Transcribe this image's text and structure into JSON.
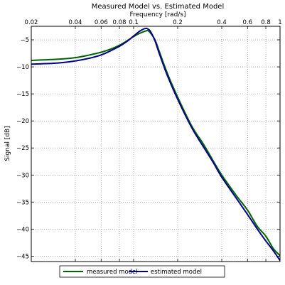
{
  "chart_data": {
    "type": "line",
    "title": "Measured Model vs. Estimated Model",
    "xlabel": "Frequency [rad/s]",
    "ylabel": "Signal [dB]",
    "xscale": "log",
    "xaxis_position": "top",
    "xlim": [
      0.02,
      1.0
    ],
    "ylim": [
      -46,
      -2.5
    ],
    "xticks": [
      0.02,
      0.04,
      0.06,
      0.08,
      0.1,
      0.2,
      0.4,
      0.6,
      0.8,
      1
    ],
    "xtick_labels": [
      "0.02",
      "0.04",
      "0.06",
      "0.08",
      "0.1",
      "0.2",
      "0.4",
      "0.6",
      "0.8",
      "1"
    ],
    "yticks": [
      -5,
      -10,
      -15,
      -20,
      -25,
      -30,
      -35,
      -40,
      -45
    ],
    "ytick_labels": [
      "−5",
      "−10",
      "−15",
      "−20",
      "−25",
      "−30",
      "−35",
      "−40",
      "−45"
    ],
    "grid": true,
    "grid_style": "dotted",
    "legend_position": "bottom-center",
    "series": [
      {
        "name": "measured model",
        "color": "#006400",
        "x": [
          0.02,
          0.03,
          0.04,
          0.05,
          0.06,
          0.07,
          0.08,
          0.09,
          0.1,
          0.11,
          0.12,
          0.125,
          0.13,
          0.14,
          0.15,
          0.17,
          0.2,
          0.25,
          0.3,
          0.35,
          0.4,
          0.5,
          0.6,
          0.7,
          0.8,
          0.9,
          1.0
        ],
        "y": [
          -8.8,
          -8.6,
          -8.3,
          -7.8,
          -7.3,
          -6.7,
          -6.0,
          -5.2,
          -4.4,
          -3.8,
          -3.4,
          -3.3,
          -3.7,
          -5.0,
          -7.2,
          -11.2,
          -15.6,
          -21.0,
          -24.3,
          -27.4,
          -30.0,
          -33.7,
          -36.5,
          -39.5,
          -41.3,
          -43.6,
          -44.9
        ]
      },
      {
        "name": "estimated model",
        "color": "#00008b",
        "x": [
          0.02,
          0.03,
          0.04,
          0.05,
          0.06,
          0.07,
          0.08,
          0.09,
          0.1,
          0.11,
          0.12,
          0.125,
          0.13,
          0.14,
          0.15,
          0.17,
          0.2,
          0.25,
          0.3,
          0.35,
          0.4,
          0.5,
          0.6,
          0.7,
          0.8,
          0.9,
          1.0
        ],
        "y": [
          -9.5,
          -9.3,
          -8.9,
          -8.4,
          -7.8,
          -7.0,
          -6.2,
          -5.3,
          -4.3,
          -3.4,
          -2.9,
          -3.0,
          -3.4,
          -5.2,
          -7.6,
          -11.6,
          -16.0,
          -21.3,
          -24.8,
          -27.7,
          -30.4,
          -34.2,
          -37.3,
          -40.0,
          -42.2,
          -44.0,
          -45.8
        ]
      }
    ]
  }
}
